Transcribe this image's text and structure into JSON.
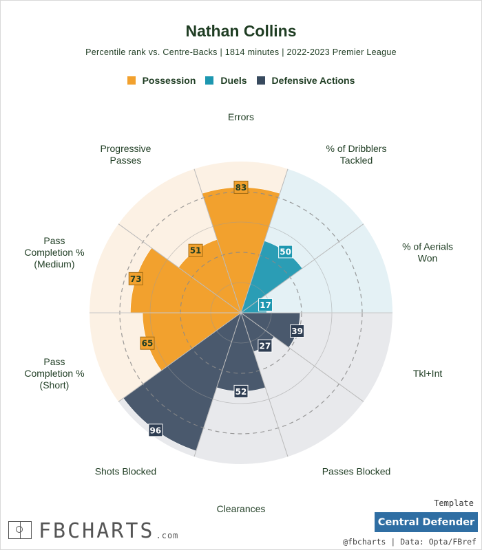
{
  "header": {
    "title": "Nathan Collins",
    "subtitle": "Percentile rank vs. Centre-Backs | 1814 minutes | 2022-2023 Premier League"
  },
  "legend": [
    {
      "label": "Possession",
      "color": "#f2a12e"
    },
    {
      "label": "Duels",
      "color": "#1d97b0"
    },
    {
      "label": "Defensive Actions",
      "color": "#384a5e"
    }
  ],
  "chart_data": {
    "type": "polar-bar",
    "title": "Nathan Collins",
    "scale": [
      0,
      100
    ],
    "gridlines": [
      20,
      40,
      60,
      80
    ],
    "categories": [
      {
        "label": [
          "Errors"
        ],
        "value": 83,
        "group": "Possession"
      },
      {
        "label": [
          "% of Dribblers",
          "Tackled"
        ],
        "value": 50,
        "group": "Duels"
      },
      {
        "label": [
          "% of Aerials",
          "Won"
        ],
        "value": 17,
        "group": "Duels"
      },
      {
        "label": [
          "Tkl+Int"
        ],
        "value": 39,
        "group": "Defensive Actions"
      },
      {
        "label": [
          "Passes Blocked"
        ],
        "value": 27,
        "group": "Defensive Actions"
      },
      {
        "label": [
          "Clearances"
        ],
        "value": 52,
        "group": "Defensive Actions"
      },
      {
        "label": [
          "Shots Blocked"
        ],
        "value": 96,
        "group": "Defensive Actions"
      },
      {
        "label": [
          "Pass",
          "Completion %",
          "(Short)"
        ],
        "value": 65,
        "group": "Possession"
      },
      {
        "label": [
          "Pass",
          "Completion %",
          "(Medium)"
        ],
        "value": 73,
        "group": "Possession"
      },
      {
        "label": [
          "Progressive",
          "Passes"
        ],
        "value": 51,
        "group": "Possession"
      }
    ],
    "group_colors": {
      "Possession": {
        "bar": "#f2a12e",
        "background": "#fcf1e4",
        "label_bg": "#f2a12e",
        "label_text": "#1f3d23"
      },
      "Duels": {
        "bar": "#2b9db5",
        "background": "#e4f1f5",
        "label_bg": "#1d97b0",
        "label_text": "#ffffff"
      },
      "Defensive Actions": {
        "bar": "#4a596d",
        "background": "#e8e9ec",
        "label_bg": "#2e3d52",
        "label_text": "#ffffff"
      }
    }
  },
  "footer": {
    "template_label": "Template",
    "template_name": "Central Defender",
    "credits": "@fbcharts | Data: Opta/FBref",
    "brand": "FBCHARTS",
    "brand_suffix": ".com"
  }
}
